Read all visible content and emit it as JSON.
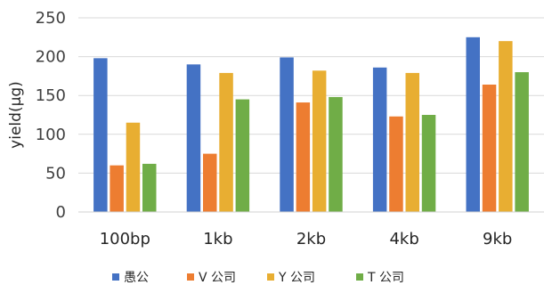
{
  "chart_data": {
    "type": "bar",
    "categories": [
      "100bp",
      "1kb",
      "2kb",
      "4kb",
      "9kb"
    ],
    "series": [
      {
        "name": "愚公",
        "color": "#4472C4",
        "values": [
          198,
          190,
          199,
          186,
          225
        ]
      },
      {
        "name": "V 公司",
        "color": "#ED7D31",
        "values": [
          60,
          75,
          141,
          123,
          164
        ]
      },
      {
        "name": "Y 公司",
        "color": "#E8AE32",
        "values": [
          115,
          179,
          182,
          179,
          220
        ]
      },
      {
        "name": "T 公司",
        "color": "#70AD47",
        "values": [
          62,
          145,
          148,
          125,
          180
        ]
      }
    ],
    "title": "",
    "xlabel": "",
    "ylabel": "yield(μg)",
    "ylim": [
      0,
      250
    ],
    "yticks": [
      0,
      50,
      100,
      150,
      200,
      250
    ],
    "grid": true,
    "legend_position": "bottom"
  }
}
